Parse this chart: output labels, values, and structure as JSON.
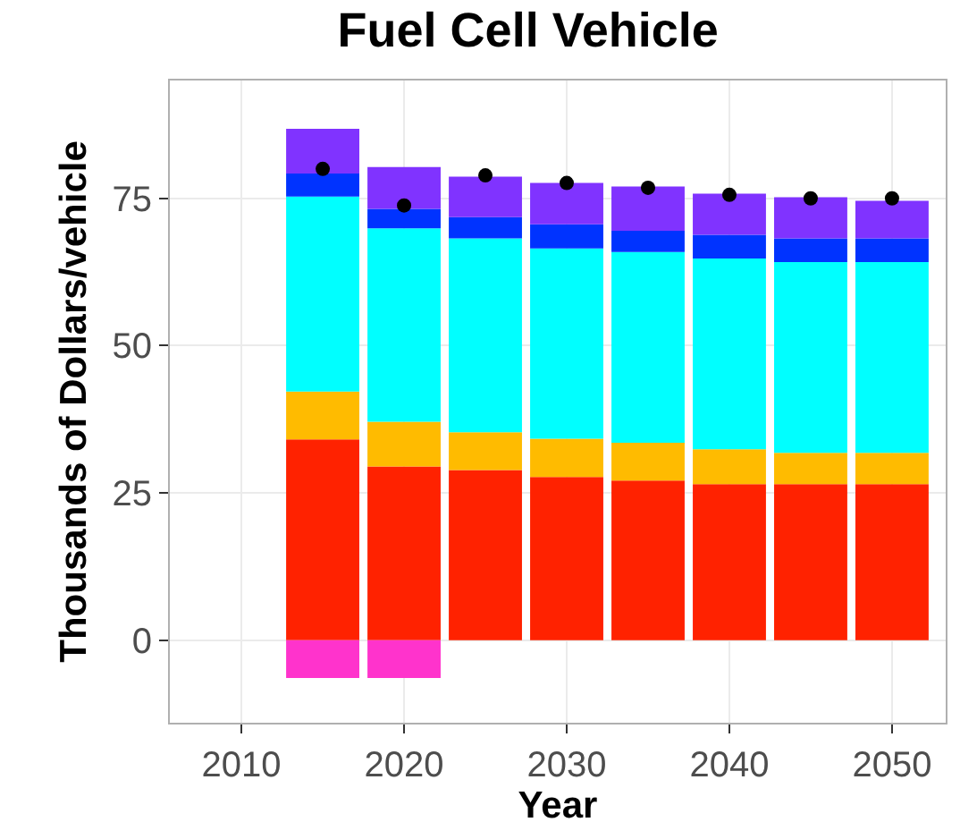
{
  "chart_data": {
    "type": "bar",
    "title": "Fuel Cell Vehicle",
    "xlabel": "Year",
    "ylabel": "Thousands of Dollars/vehicle",
    "stacked": true,
    "x": [
      2015,
      2020,
      2025,
      2030,
      2035,
      2040,
      2045,
      2050
    ],
    "series": [
      {
        "color": "#ff2200",
        "values": [
          34.1,
          29.5,
          28.9,
          27.7,
          27.1,
          26.5,
          26.5,
          26.5
        ]
      },
      {
        "color": "#ffbb00",
        "values": [
          8.1,
          7.6,
          6.4,
          6.5,
          6.4,
          5.9,
          5.3,
          5.3
        ]
      },
      {
        "color": "#00ffff",
        "values": [
          33.1,
          32.8,
          32.9,
          32.3,
          32.4,
          32.4,
          32.4,
          32.4
        ]
      },
      {
        "color": "#0033ff",
        "values": [
          3.9,
          3.3,
          3.6,
          4.1,
          3.6,
          4.0,
          4.0,
          4.0
        ]
      },
      {
        "color": "#8033ff",
        "values": [
          7.6,
          7.1,
          6.9,
          7.0,
          7.5,
          7.0,
          7.0,
          6.4
        ]
      },
      {
        "color": "#ff33cc",
        "values": [
          -6.4,
          -6.4,
          null,
          null,
          null,
          null,
          null,
          null
        ]
      },
      {
        "type": "scatter",
        "color": "#000000",
        "marker": "circle",
        "values": [
          80.0,
          73.8,
          78.9,
          77.6,
          76.8,
          75.6,
          75.0,
          75.0
        ]
      }
    ],
    "xlim": [
      2005.6,
      2053.3
    ],
    "xticks": [
      2010,
      2020,
      2030,
      2040,
      2050
    ],
    "ylim": [
      -14,
      95
    ],
    "yticks": [
      0,
      25,
      50,
      75
    ],
    "grid": true
  }
}
